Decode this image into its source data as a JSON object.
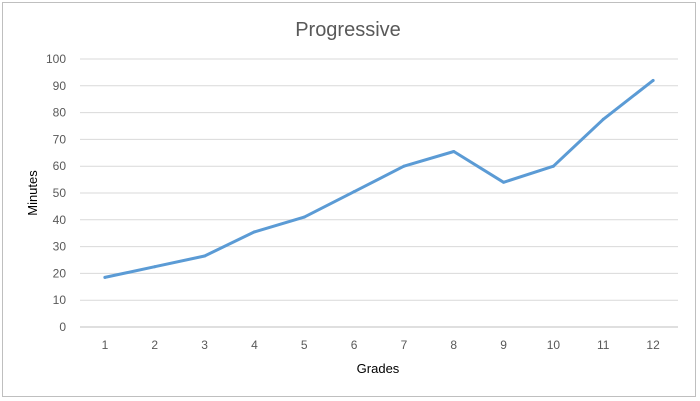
{
  "chart_data": {
    "type": "line",
    "title": "Progressive",
    "xlabel": "Grades",
    "ylabel": "Minutes",
    "categories": [
      "1",
      "2",
      "3",
      "4",
      "5",
      "6",
      "7",
      "8",
      "9",
      "10",
      "11",
      "12"
    ],
    "series": [
      {
        "values": [
          18.5,
          22.5,
          26.5,
          35.5,
          41,
          50.5,
          60,
          65.5,
          54,
          60,
          77.5,
          92
        ]
      }
    ],
    "ylim": [
      0,
      100
    ],
    "yticks": [
      "0",
      "10",
      "20",
      "30",
      "40",
      "50",
      "60",
      "70",
      "80",
      "90",
      "100"
    ],
    "grid": true,
    "legend": "none",
    "line_color": "#5b9bd5"
  }
}
